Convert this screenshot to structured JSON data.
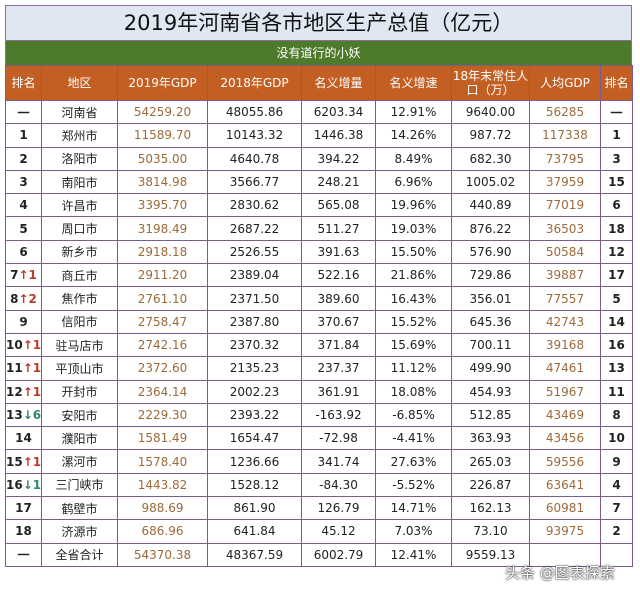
{
  "title": "2019年河南省各市地区生产总值（亿元）",
  "subtitle": "没有道行的小妖",
  "headers": [
    "排名",
    "地区",
    "2019年GDP",
    "2018年GDP",
    "名义增量",
    "名义增速",
    "18年末常住人口（万）",
    "人均GDP",
    "排名"
  ],
  "rows": [
    {
      "rank": "一",
      "change": "",
      "dir": "",
      "region": "河南省",
      "gdp2019": "54259.20",
      "gdp2018": "48055.86",
      "inc": "6203.34",
      "rate": "12.91%",
      "pop": "9640.00",
      "pc": "56285",
      "pcrank": "一"
    },
    {
      "rank": "1",
      "change": "",
      "dir": "",
      "region": "郑州市",
      "gdp2019": "11589.70",
      "gdp2018": "10143.32",
      "inc": "1446.38",
      "rate": "14.26%",
      "pop": "987.72",
      "pc": "117338",
      "pcrank": "1"
    },
    {
      "rank": "2",
      "change": "",
      "dir": "",
      "region": "洛阳市",
      "gdp2019": "5035.00",
      "gdp2018": "4640.78",
      "inc": "394.22",
      "rate": "8.49%",
      "pop": "682.30",
      "pc": "73795",
      "pcrank": "3"
    },
    {
      "rank": "3",
      "change": "",
      "dir": "",
      "region": "南阳市",
      "gdp2019": "3814.98",
      "gdp2018": "3566.77",
      "inc": "248.21",
      "rate": "6.96%",
      "pop": "1005.02",
      "pc": "37959",
      "pcrank": "15"
    },
    {
      "rank": "4",
      "change": "",
      "dir": "",
      "region": "许昌市",
      "gdp2019": "3395.70",
      "gdp2018": "2830.62",
      "inc": "565.08",
      "rate": "19.96%",
      "pop": "440.89",
      "pc": "77019",
      "pcrank": "6"
    },
    {
      "rank": "5",
      "change": "",
      "dir": "",
      "region": "周口市",
      "gdp2019": "3198.49",
      "gdp2018": "2687.22",
      "inc": "511.27",
      "rate": "19.03%",
      "pop": "876.22",
      "pc": "36503",
      "pcrank": "18"
    },
    {
      "rank": "6",
      "change": "",
      "dir": "",
      "region": "新乡市",
      "gdp2019": "2918.18",
      "gdp2018": "2526.55",
      "inc": "391.63",
      "rate": "15.50%",
      "pop": "576.90",
      "pc": "50584",
      "pcrank": "12"
    },
    {
      "rank": "7",
      "change": "↑1",
      "dir": "up",
      "region": "商丘市",
      "gdp2019": "2911.20",
      "gdp2018": "2389.04",
      "inc": "522.16",
      "rate": "21.86%",
      "pop": "729.86",
      "pc": "39887",
      "pcrank": "17"
    },
    {
      "rank": "8",
      "change": "↑2",
      "dir": "up",
      "region": "焦作市",
      "gdp2019": "2761.10",
      "gdp2018": "2371.50",
      "inc": "389.60",
      "rate": "16.43%",
      "pop": "356.01",
      "pc": "77557",
      "pcrank": "5"
    },
    {
      "rank": "9",
      "change": "",
      "dir": "",
      "region": "信阳市",
      "gdp2019": "2758.47",
      "gdp2018": "2387.80",
      "inc": "370.67",
      "rate": "15.52%",
      "pop": "645.36",
      "pc": "42743",
      "pcrank": "14"
    },
    {
      "rank": "10",
      "change": "↑1",
      "dir": "up",
      "region": "驻马店市",
      "gdp2019": "2742.16",
      "gdp2018": "2370.32",
      "inc": "371.84",
      "rate": "15.69%",
      "pop": "700.11",
      "pc": "39168",
      "pcrank": "16"
    },
    {
      "rank": "11",
      "change": "↑1",
      "dir": "up",
      "region": "平顶山市",
      "gdp2019": "2372.60",
      "gdp2018": "2135.23",
      "inc": "237.37",
      "rate": "11.12%",
      "pop": "499.90",
      "pc": "47461",
      "pcrank": "13"
    },
    {
      "rank": "12",
      "change": "↑1",
      "dir": "up",
      "region": "开封市",
      "gdp2019": "2364.14",
      "gdp2018": "2002.23",
      "inc": "361.91",
      "rate": "18.08%",
      "pop": "454.93",
      "pc": "51967",
      "pcrank": "11"
    },
    {
      "rank": "13",
      "change": "↓6",
      "dir": "dn",
      "region": "安阳市",
      "gdp2019": "2229.30",
      "gdp2018": "2393.22",
      "inc": "-163.92",
      "rate": "-6.85%",
      "pop": "512.85",
      "pc": "43469",
      "pcrank": "8"
    },
    {
      "rank": "14",
      "change": "",
      "dir": "",
      "region": "濮阳市",
      "gdp2019": "1581.49",
      "gdp2018": "1654.47",
      "inc": "-72.98",
      "rate": "-4.41%",
      "pop": "363.93",
      "pc": "43456",
      "pcrank": "10"
    },
    {
      "rank": "15",
      "change": "↑1",
      "dir": "up",
      "region": "漯河市",
      "gdp2019": "1578.40",
      "gdp2018": "1236.66",
      "inc": "341.74",
      "rate": "27.63%",
      "pop": "265.03",
      "pc": "59556",
      "pcrank": "9"
    },
    {
      "rank": "16",
      "change": "↓1",
      "dir": "dn",
      "region": "三门峡市",
      "gdp2019": "1443.82",
      "gdp2018": "1528.12",
      "inc": "-84.30",
      "rate": "-5.52%",
      "pop": "226.87",
      "pc": "63641",
      "pcrank": "4"
    },
    {
      "rank": "17",
      "change": "",
      "dir": "",
      "region": "鹤壁市",
      "gdp2019": "988.69",
      "gdp2018": "861.90",
      "inc": "126.79",
      "rate": "14.71%",
      "pop": "162.13",
      "pc": "60981",
      "pcrank": "7"
    },
    {
      "rank": "18",
      "change": "",
      "dir": "",
      "region": "济源市",
      "gdp2019": "686.96",
      "gdp2018": "641.84",
      "inc": "45.12",
      "rate": "7.03%",
      "pop": "73.10",
      "pc": "93975",
      "pcrank": "2"
    },
    {
      "rank": "一",
      "change": "",
      "dir": "",
      "region": "全省合计",
      "gdp2019": "54370.38",
      "gdp2018": "48367.59",
      "inc": "6002.79",
      "rate": "12.41%",
      "pop": "9559.13",
      "pc": "",
      "pcrank": ""
    }
  ],
  "watermark": "头条 @图表探索"
}
